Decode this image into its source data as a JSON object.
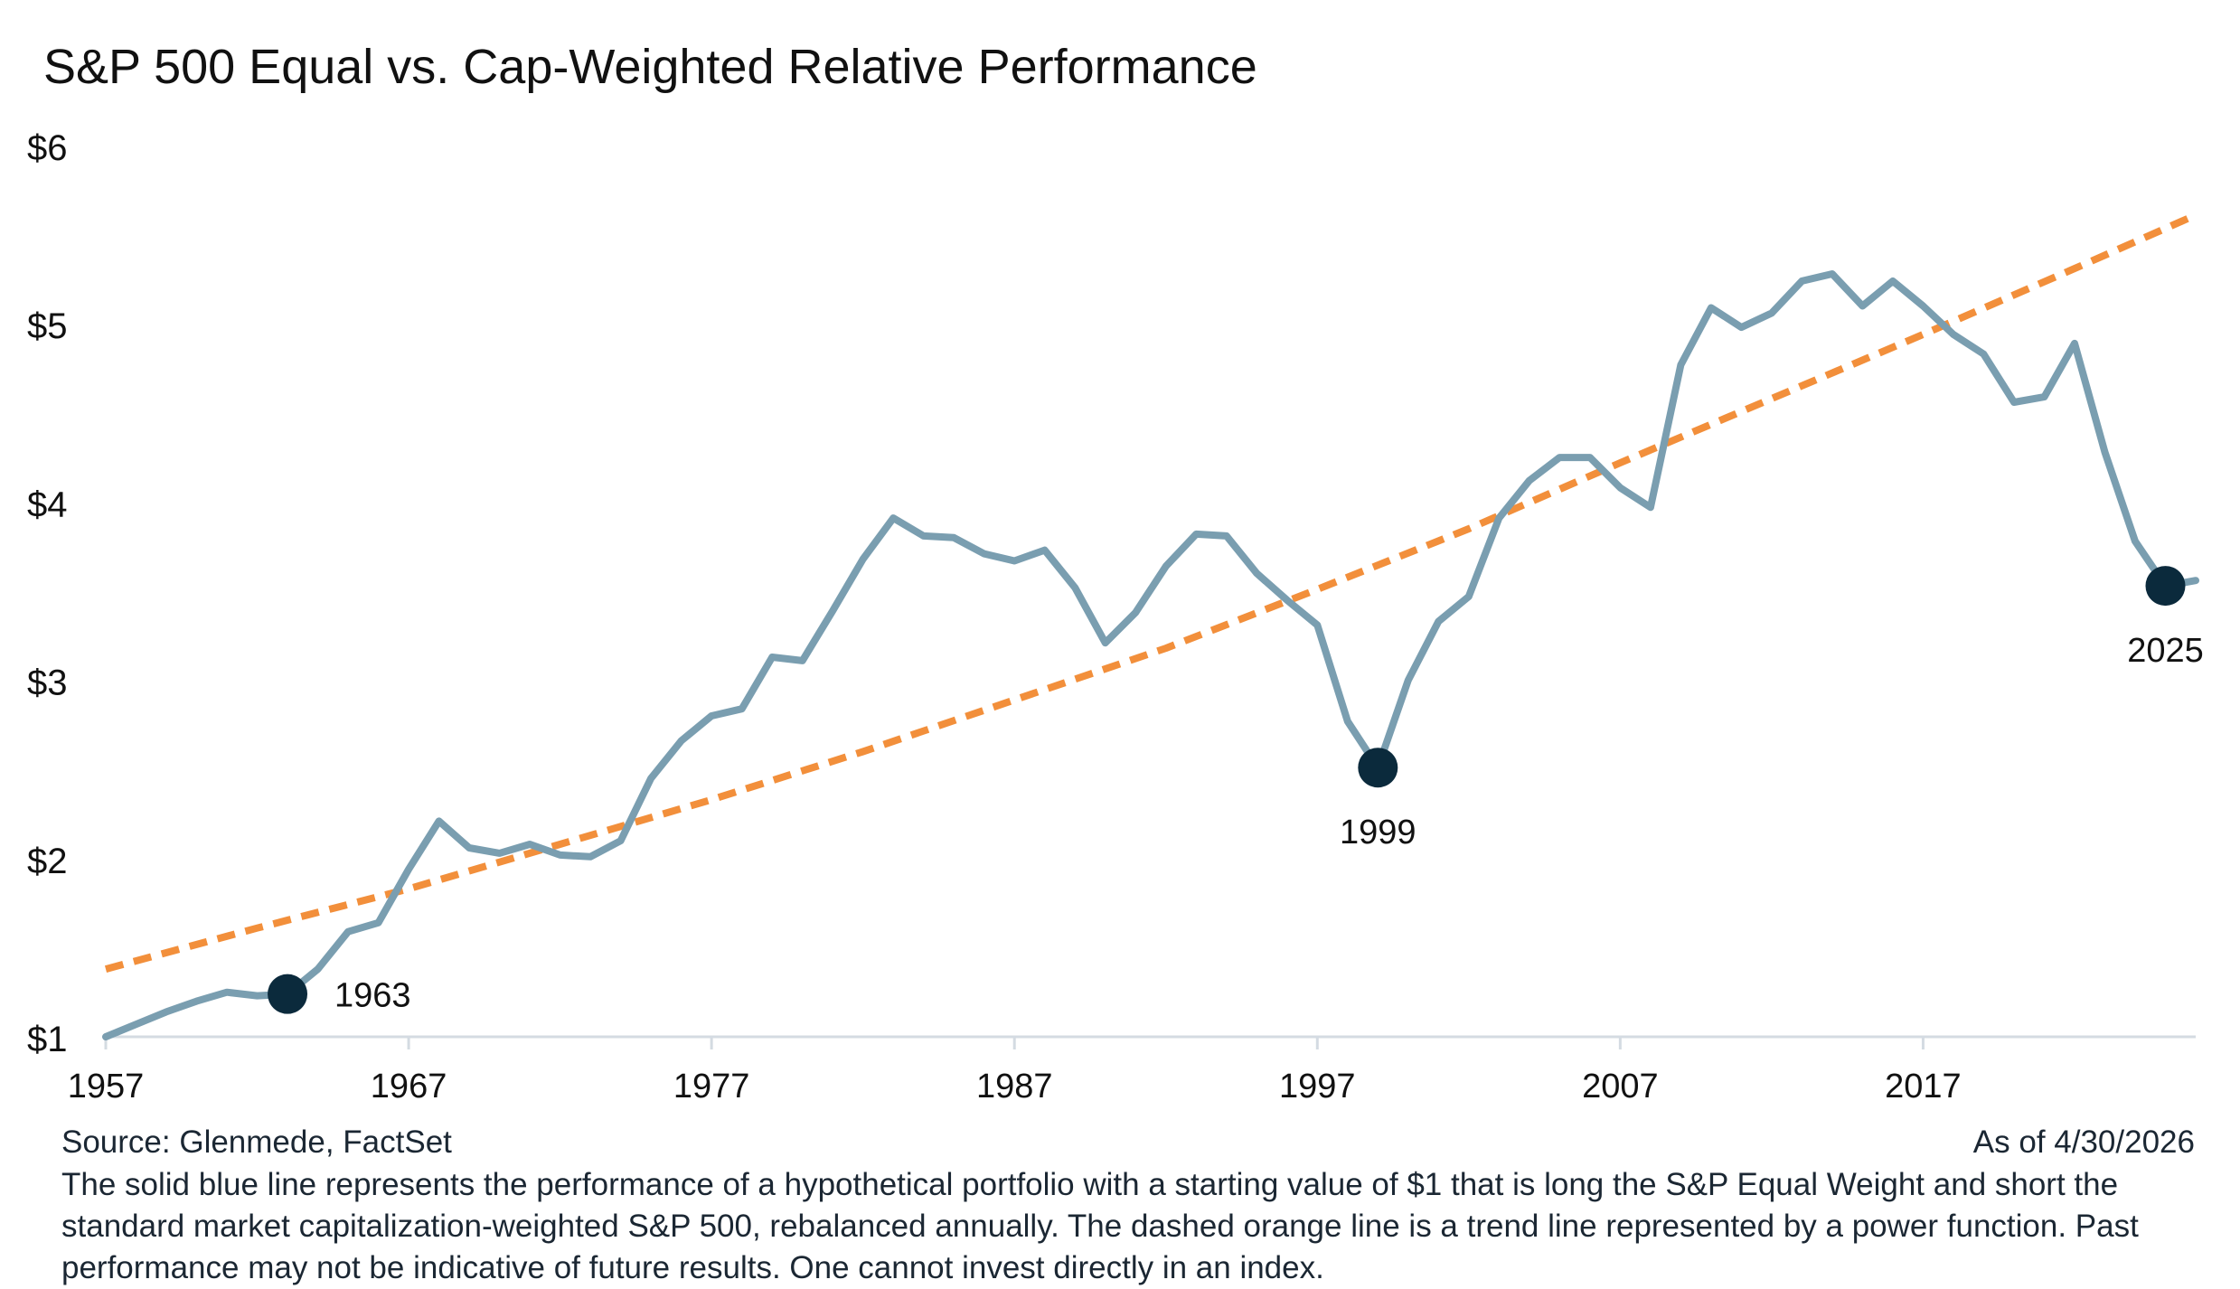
{
  "chart_data": {
    "type": "line",
    "title": "S&P 500 Equal vs. Cap-Weighted Relative Performance",
    "xlabel": "",
    "ylabel": "",
    "xlim": [
      1957,
      2026
    ],
    "ylim": [
      1,
      6
    ],
    "x_ticks": [
      1957,
      1967,
      1977,
      1987,
      1997,
      2007,
      2017
    ],
    "y_ticks": [
      1,
      2,
      3,
      4,
      5,
      6
    ],
    "y_tick_labels": [
      "$1",
      "$2",
      "$3",
      "$4",
      "$5",
      "$6"
    ],
    "grid": false,
    "series": [
      {
        "kind": "solid",
        "color": "#7a9eb0",
        "x": [
          1957,
          1958,
          1959,
          1960,
          1961,
          1962,
          1963,
          1964,
          1965,
          1966,
          1967,
          1968,
          1969,
          1970,
          1971,
          1972,
          1973,
          1974,
          1975,
          1976,
          1977,
          1978,
          1979,
          1980,
          1981,
          1982,
          1983,
          1984,
          1985,
          1986,
          1987,
          1988,
          1989,
          1990,
          1991,
          1992,
          1993,
          1994,
          1995,
          1996,
          1997,
          1998,
          1999,
          2000,
          2001,
          2002,
          2003,
          2004,
          2005,
          2006,
          2007,
          2008,
          2009,
          2010,
          2011,
          2012,
          2013,
          2014,
          2015,
          2016,
          2017,
          2018,
          2019,
          2020,
          2021,
          2022,
          2023,
          2024,
          2025,
          2026
        ],
        "y": [
          1.0,
          1.07,
          1.14,
          1.2,
          1.25,
          1.23,
          1.24,
          1.38,
          1.59,
          1.64,
          1.94,
          2.21,
          2.06,
          2.03,
          2.08,
          2.02,
          2.01,
          2.1,
          2.45,
          2.66,
          2.8,
          2.84,
          3.13,
          3.11,
          3.39,
          3.68,
          3.91,
          3.81,
          3.8,
          3.71,
          3.67,
          3.73,
          3.52,
          3.21,
          3.38,
          3.64,
          3.82,
          3.81,
          3.6,
          3.45,
          3.31,
          2.77,
          2.51,
          3.0,
          3.33,
          3.47,
          3.91,
          4.12,
          4.25,
          4.25,
          4.08,
          3.97,
          4.77,
          5.09,
          4.98,
          5.06,
          5.24,
          5.28,
          5.1,
          5.24,
          5.1,
          4.94,
          4.83,
          4.56,
          4.59,
          4.89,
          4.28,
          3.78,
          3.53,
          3.56
        ]
      },
      {
        "kind": "dashed",
        "color": "#f28f3b",
        "x": [
          1957,
          1962,
          1967,
          1972,
          1977,
          1982,
          1987,
          1992,
          1997,
          2002,
          2007,
          2012,
          2017,
          2022,
          2026
        ],
        "y": [
          1.38,
          1.61,
          1.83,
          2.08,
          2.33,
          2.6,
          2.89,
          3.18,
          3.51,
          3.85,
          4.22,
          4.58,
          4.94,
          5.31,
          5.61
        ]
      }
    ],
    "annotations": [
      {
        "x": 1963,
        "y": 1.24,
        "label": "1963",
        "label_pos": "right"
      },
      {
        "x": 1999,
        "y": 2.51,
        "label": "1999",
        "label_pos": "below"
      },
      {
        "x": 2025,
        "y": 3.53,
        "label": "2025",
        "label_pos": "below"
      }
    ],
    "marker_color": "#0b2a3c"
  },
  "footer": {
    "source": "Source: Glenmede, FactSet",
    "as_of": "As of 4/30/2026",
    "note": "The solid blue line represents the performance of a hypothetical portfolio with a starting value of $1 that is long the S&P Equal Weight and short the standard market capitalization-weighted S&P 500, rebalanced annually. The dashed orange line is a trend line represented by a power function. Past performance may not be indicative of future results. One cannot invest directly in an index."
  }
}
